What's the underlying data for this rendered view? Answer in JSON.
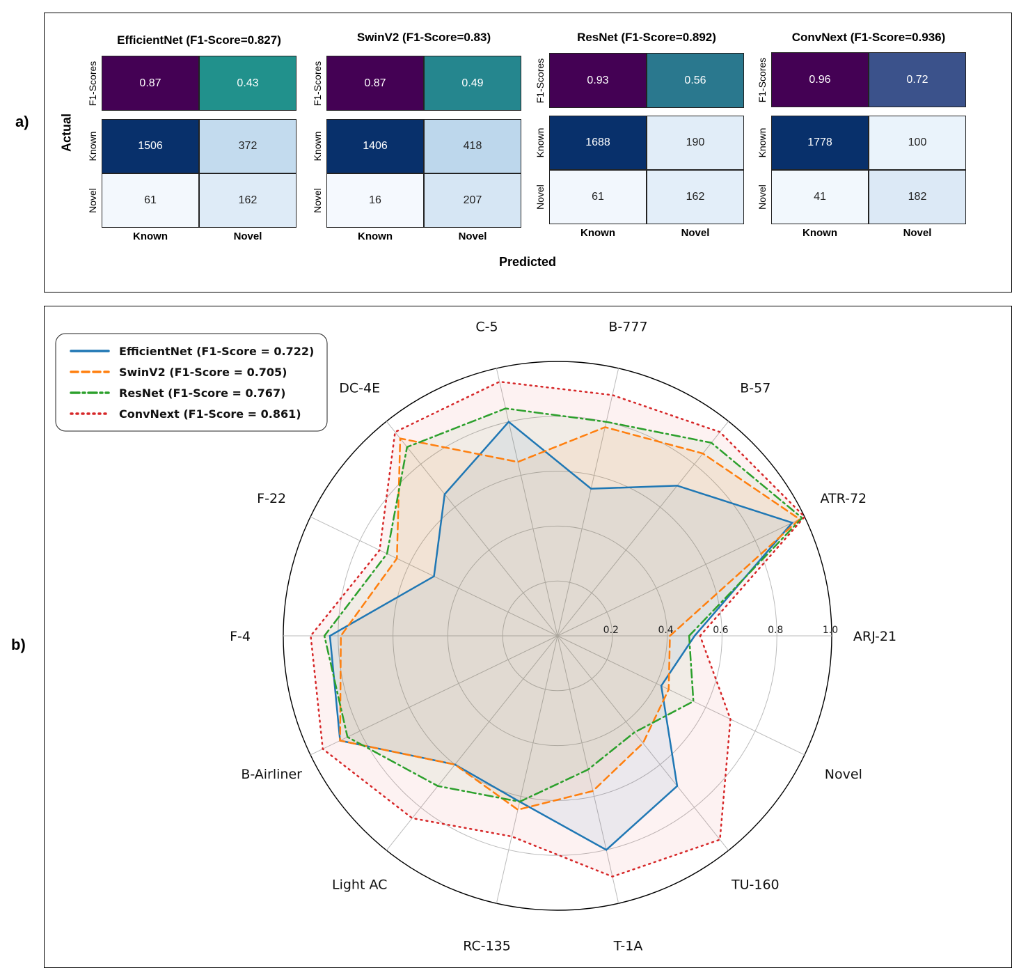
{
  "panel_a": {
    "label": "a)",
    "ylabel": "Actual",
    "xlabel": "Predicted",
    "matrices": [
      {
        "title": "EfficientNet (F1-Score=0.827)",
        "f1": [
          "0.87",
          "0.43"
        ],
        "f1_colors": [
          "#440154",
          "#21918c"
        ],
        "cm": [
          [
            "1506",
            "372"
          ],
          [
            "61",
            "162"
          ]
        ],
        "cm_colors": [
          [
            "#08306b",
            "#c3dbee"
          ],
          [
            "#f3f8fd",
            "#deebf7"
          ]
        ],
        "cm_text_colors": [
          [
            "#ffffff",
            "#222222"
          ],
          [
            "#222222",
            "#222222"
          ]
        ]
      },
      {
        "title": "SwinV2 (F1-Score=0.83)",
        "f1": [
          "0.87",
          "0.49"
        ],
        "f1_colors": [
          "#440154",
          "#25868e"
        ],
        "cm": [
          [
            "1406",
            "418"
          ],
          [
            "16",
            "207"
          ]
        ],
        "cm_colors": [
          [
            "#08306b",
            "#bdd7ec"
          ],
          [
            "#f5f9fe",
            "#d6e6f4"
          ]
        ],
        "cm_text_colors": [
          [
            "#ffffff",
            "#222222"
          ],
          [
            "#222222",
            "#222222"
          ]
        ]
      },
      {
        "title": "ResNet (F1-Score=0.892)",
        "f1": [
          "0.93",
          "0.56"
        ],
        "f1_colors": [
          "#440154",
          "#2a788e"
        ],
        "cm": [
          [
            "1688",
            "190"
          ],
          [
            "61",
            "162"
          ]
        ],
        "cm_colors": [
          [
            "#08306b",
            "#e1edf8"
          ],
          [
            "#f2f7fd",
            "#e3eef9"
          ]
        ],
        "cm_text_colors": [
          [
            "#ffffff",
            "#222222"
          ],
          [
            "#222222",
            "#222222"
          ]
        ]
      },
      {
        "title": "ConvNext (F1-Score=0.936)",
        "f1": [
          "0.96",
          "0.72"
        ],
        "f1_colors": [
          "#440154",
          "#3b528b"
        ],
        "cm": [
          [
            "1778",
            "100"
          ],
          [
            "41",
            "182"
          ]
        ],
        "cm_colors": [
          [
            "#08306b",
            "#eaf3fb"
          ],
          [
            "#f2f8fd",
            "#dce9f6"
          ]
        ],
        "cm_text_colors": [
          [
            "#ffffff",
            "#222222"
          ],
          [
            "#222222",
            "#222222"
          ]
        ]
      }
    ],
    "row_labels": {
      "f1": "F1-Scores",
      "known": "Known",
      "novel": "Novel"
    },
    "col_labels": [
      "Known",
      "Novel"
    ]
  },
  "panel_b": {
    "label": "b)"
  },
  "chart_data": {
    "type": "radar",
    "categories": [
      "ARJ-21",
      "ATR-72",
      "B-57",
      "B-777",
      "C-5",
      "DC-4E",
      "F-22",
      "F-4",
      "B-Airliner",
      "Light AC",
      "RC-135",
      "T-1A",
      "TU-160",
      "Novel"
    ],
    "rlim": [
      0,
      1.0
    ],
    "rticks": [
      "0.2",
      "0.4",
      "0.6",
      "0.8",
      "1.0"
    ],
    "rtick_values": [
      0.2,
      0.4,
      0.6,
      0.8,
      1.0
    ],
    "series": [
      {
        "name": "EfficientNet (F1-Score = 0.722)",
        "color": "#1f77b4",
        "style": "solid",
        "values": [
          0.5,
          0.95,
          0.7,
          0.55,
          0.8,
          0.66,
          0.5,
          0.83,
          0.88,
          0.6,
          0.62,
          0.8,
          0.7,
          0.42
        ]
      },
      {
        "name": "SwinV2 (F1-Score = 0.705)",
        "color": "#ff7f0e",
        "style": "dashed",
        "values": [
          0.41,
          0.98,
          0.85,
          0.78,
          0.65,
          0.92,
          0.65,
          0.79,
          0.88,
          0.6,
          0.65,
          0.58,
          0.5,
          0.45
        ]
      },
      {
        "name": "ResNet (F1-Score = 0.767)",
        "color": "#2ca02c",
        "style": "dashdot",
        "values": [
          0.48,
          0.99,
          0.9,
          0.8,
          0.85,
          0.88,
          0.69,
          0.85,
          0.85,
          0.7,
          0.62,
          0.5,
          0.45,
          0.55
        ]
      },
      {
        "name": "ConvNext (F1-Score = 0.861)",
        "color": "#d62728",
        "style": "dotted",
        "values": [
          0.52,
          1.0,
          0.95,
          0.9,
          0.95,
          0.95,
          0.72,
          0.9,
          0.95,
          0.85,
          0.75,
          0.9,
          0.95,
          0.7
        ]
      }
    ]
  }
}
